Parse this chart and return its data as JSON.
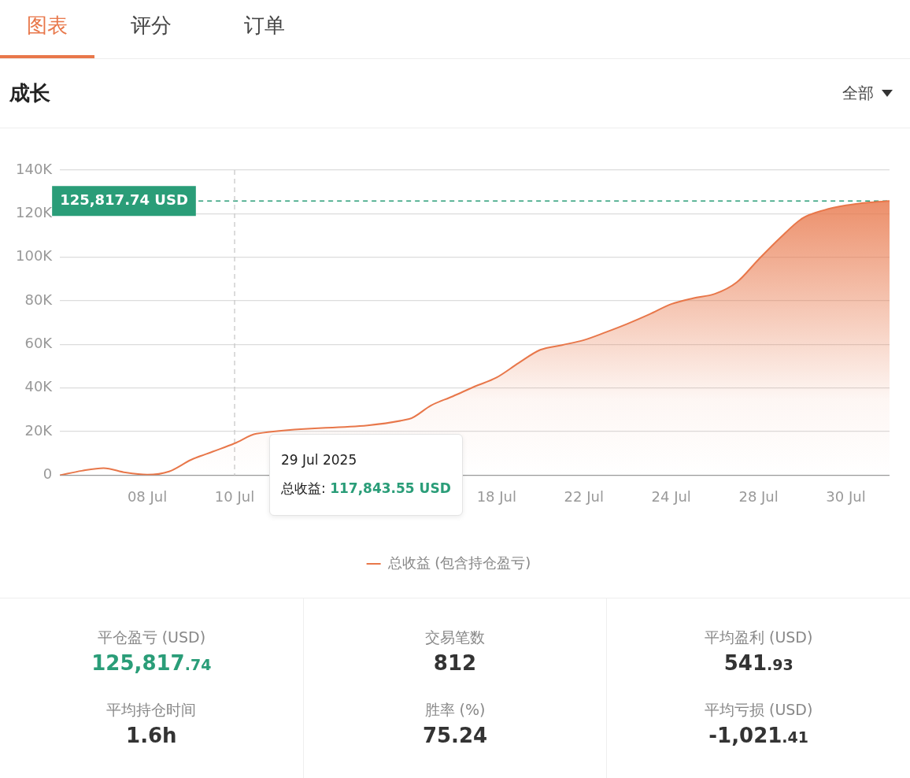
{
  "chart_data": [
    {
      "type": "other",
      "annotations": [
        "图表",
        "评分",
        "订单"
      ]
    },
    {
      "type": "area",
      "title": "成长",
      "annotations": [
        "全部",
        "29 Jul 2025",
        "总收益: 117,843.55 USD"
      ],
      "categories": [
        null,
        null,
        null,
        null,
        "08 Jul",
        null,
        null,
        null,
        "10 Jul",
        null,
        null,
        null,
        null,
        null,
        null,
        null,
        null,
        null,
        null,
        null,
        "18 Jul",
        null,
        null,
        null,
        "22 Jul",
        null,
        null,
        null,
        "24 Jul",
        null,
        null,
        null,
        "28 Jul",
        null,
        null,
        null,
        "30 Jul",
        null,
        null
      ],
      "series": [
        {
          "name": "总收益 (包含持仓盈亏)",
          "color": "#e8774a",
          "values": [
            0,
            2000,
            3200,
            1200,
            200,
            1700,
            7000,
            10800,
            14600,
            19000,
            null,
            null,
            null,
            null,
            null,
            null,
            25800,
            32000,
            36200,
            40700,
            44800,
            51400,
            57500,
            59700,
            62000,
            65600,
            69500,
            73800,
            78500,
            81200,
            83200,
            88500,
            99000,
            109000,
            117800,
            121600,
            123800,
            125100,
            125800
          ]
        }
      ],
      "ylim": [
        0,
        140000
      ],
      "yticks": [
        0,
        {
          "value": 20000,
          "label": "20K"
        },
        {
          "value": 40000,
          "label": "40K"
        },
        {
          "value": 60000,
          "label": "60K"
        },
        {
          "value": 80000,
          "label": "80K"
        },
        {
          "value": 100000,
          "label": "100K"
        },
        {
          "value": 120000,
          "label": "120K"
        },
        {
          "value": 140000,
          "label": "140K"
        }
      ],
      "ref_lines": [
        {
          "axis": "y",
          "value": 125817.74,
          "label": "125,817.74 USD",
          "color": "#2a9d78",
          "line_style": "dashed"
        },
        {
          "axis": "x",
          "value": "10 Jul",
          "color": "#c8c8c8",
          "line_style": "dashed"
        }
      ],
      "grid": "y",
      "legend": "bottom"
    },
    {
      "type": "other",
      "annotations": [
        "平仓盈亏 (USD)",
        "125,817.74",
        "交易笔数",
        "812",
        "平均盈利 (USD)",
        "541.93",
        "平均持仓时间",
        "1.6h",
        "胜率 (%)",
        "75.24",
        "平均亏损 (USD)",
        "-1,021.41"
      ]
    }
  ]
}
